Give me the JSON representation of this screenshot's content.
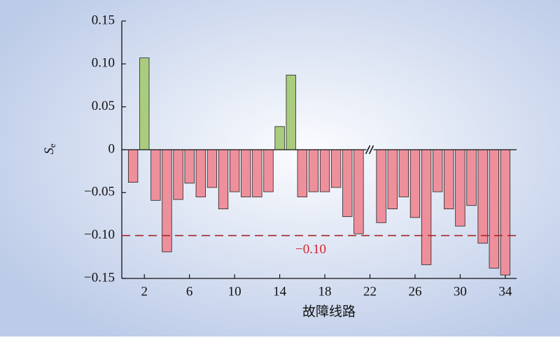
{
  "chart_data": {
    "type": "bar",
    "ylabel": {
      "main": "S",
      "sub": "e"
    },
    "xlabel": "故障线路",
    "x": [
      1,
      2,
      3,
      4,
      5,
      6,
      7,
      8,
      9,
      10,
      11,
      12,
      13,
      14,
      15,
      16,
      17,
      18,
      19,
      20,
      21,
      22,
      23,
      24,
      25,
      26,
      27,
      28,
      29,
      30,
      31,
      32,
      33,
      34
    ],
    "values": [
      -0.038,
      0.107,
      -0.059,
      -0.119,
      -0.058,
      -0.039,
      -0.055,
      -0.044,
      -0.069,
      -0.049,
      -0.055,
      -0.055,
      -0.049,
      0.027,
      0.087,
      -0.055,
      -0.049,
      -0.049,
      -0.044,
      -0.078,
      -0.098,
      null,
      -0.085,
      -0.069,
      -0.055,
      -0.079,
      -0.134,
      -0.049,
      -0.069,
      -0.089,
      -0.065,
      -0.109,
      -0.138,
      -0.146
    ],
    "positive_color": "#a9cc7f",
    "negative_color": "#ee909c",
    "xlim": [
      0,
      35
    ],
    "xticks": [
      2,
      6,
      10,
      14,
      18,
      22,
      26,
      30,
      34
    ],
    "ylim": [
      -0.15,
      0.15
    ],
    "yticks": [
      {
        "value": -0.15,
        "label": "−0.15"
      },
      {
        "value": -0.1,
        "label": "−0.10"
      },
      {
        "value": -0.05,
        "label": "−0.05"
      },
      0,
      {
        "value": 0.05,
        "label": "0.05"
      },
      {
        "value": 0.1,
        "label": "0.10"
      },
      {
        "value": 0.15,
        "label": "0.15"
      }
    ],
    "threshold": {
      "value": -0.1,
      "label": "−0.10",
      "color": "#a3262a",
      "label_color": "#d3232e"
    }
  }
}
